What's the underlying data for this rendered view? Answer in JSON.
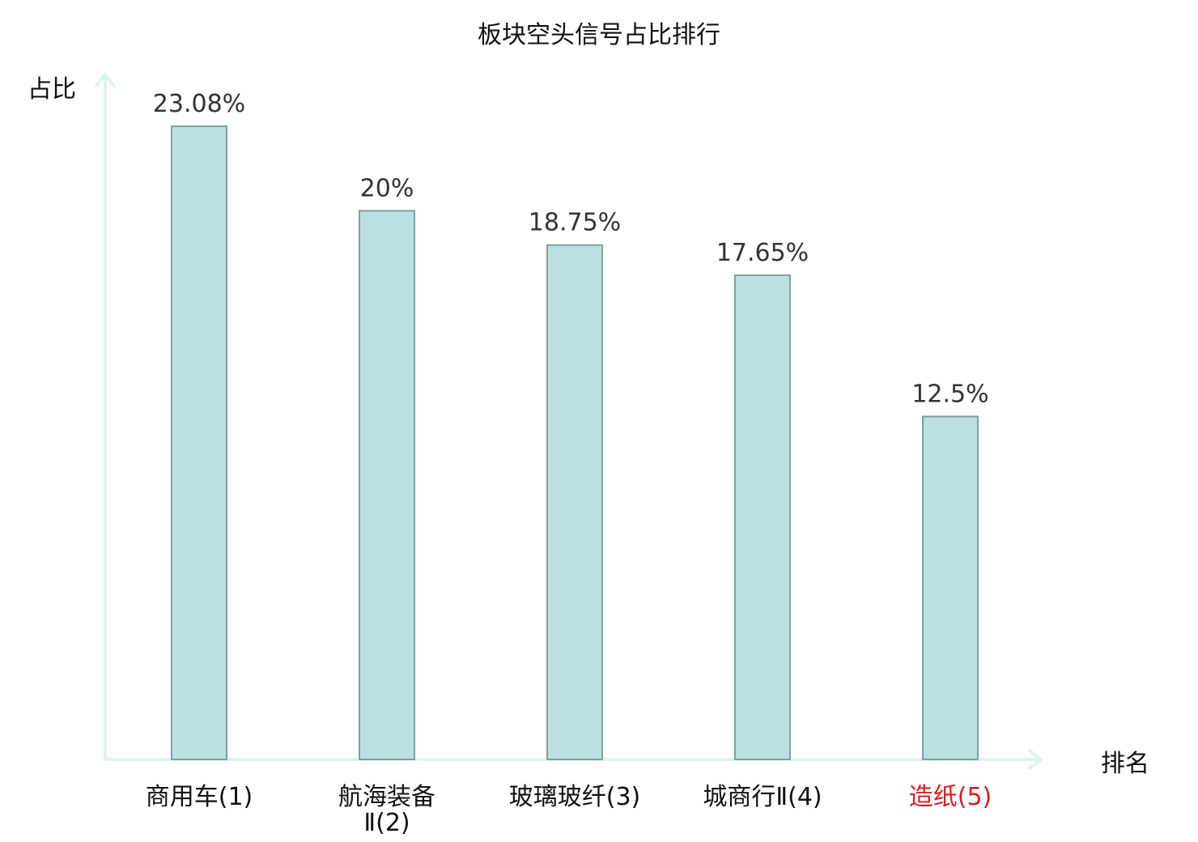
{
  "chart_data": {
    "type": "bar",
    "title": "板块空头信号占比排行",
    "ylabel": "占比",
    "xlabel": "排名",
    "categories": [
      {
        "lines": [
          "商用车(1)"
        ],
        "highlight": false
      },
      {
        "lines": [
          "航海装备",
          "Ⅱ(2)"
        ],
        "highlight": false
      },
      {
        "lines": [
          "玻璃玻纤(3)"
        ],
        "highlight": false
      },
      {
        "lines": [
          "城商行Ⅱ(4)"
        ],
        "highlight": false
      },
      {
        "lines": [
          "造纸(5)"
        ],
        "highlight": true
      }
    ],
    "values": [
      23.08,
      20,
      18.75,
      17.65,
      12.5
    ],
    "value_labels": [
      "23.08%",
      "20%",
      "18.75%",
      "17.65%",
      "12.5%"
    ],
    "ylim": [
      0,
      23.08
    ],
    "grid": false,
    "legend": "none",
    "colors": {
      "bar_fill": "#bce0e2",
      "bar_stroke": "#7f9fa1",
      "axis": "#e1f3f1",
      "text": "#111111",
      "highlight_text": "#e0191b"
    }
  }
}
